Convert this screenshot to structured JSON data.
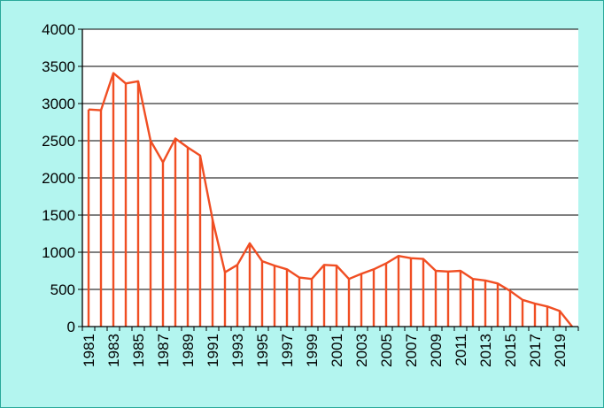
{
  "chart_data": {
    "type": "area",
    "title": "",
    "xlabel": "",
    "ylabel": "",
    "x": [
      1981,
      1982,
      1983,
      1984,
      1985,
      1986,
      1987,
      1988,
      1989,
      1990,
      1991,
      1992,
      1993,
      1994,
      1995,
      1996,
      1997,
      1998,
      1999,
      2000,
      2001,
      2002,
      2003,
      2004,
      2005,
      2006,
      2007,
      2008,
      2009,
      2010,
      2011,
      2012,
      2013,
      2014,
      2015,
      2016,
      2017,
      2018,
      2019,
      2020
    ],
    "values": [
      2920,
      2910,
      3410,
      3270,
      3300,
      2500,
      2210,
      2530,
      2410,
      2300,
      1440,
      730,
      830,
      1120,
      880,
      820,
      770,
      660,
      640,
      830,
      820,
      640,
      710,
      770,
      850,
      950,
      920,
      910,
      750,
      740,
      750,
      640,
      620,
      580,
      480,
      360,
      310,
      270,
      210,
      0
    ],
    "x_tick_labels": [
      "1981",
      "1983",
      "1985",
      "1987",
      "1989",
      "1991",
      "1993",
      "1995",
      "1997",
      "1999",
      "2001",
      "2003",
      "2005",
      "2007",
      "2009",
      "2011",
      "2013",
      "2015",
      "2017",
      "2019"
    ],
    "y_tick_labels": [
      "0",
      "500",
      "1000",
      "1500",
      "2000",
      "2500",
      "3000",
      "3500",
      "4000"
    ],
    "ylim": [
      0,
      4000
    ],
    "y_ticks": [
      0,
      500,
      1000,
      1500,
      2000,
      2500,
      3000,
      3500,
      4000
    ],
    "grid": "horizontal",
    "legend": "none",
    "colors": {
      "series": "#f04e23",
      "plot_background": "#ffffff",
      "frame_background": "#b3f5ef",
      "frame_border": "#2aa99b",
      "grid": "#000000"
    }
  }
}
